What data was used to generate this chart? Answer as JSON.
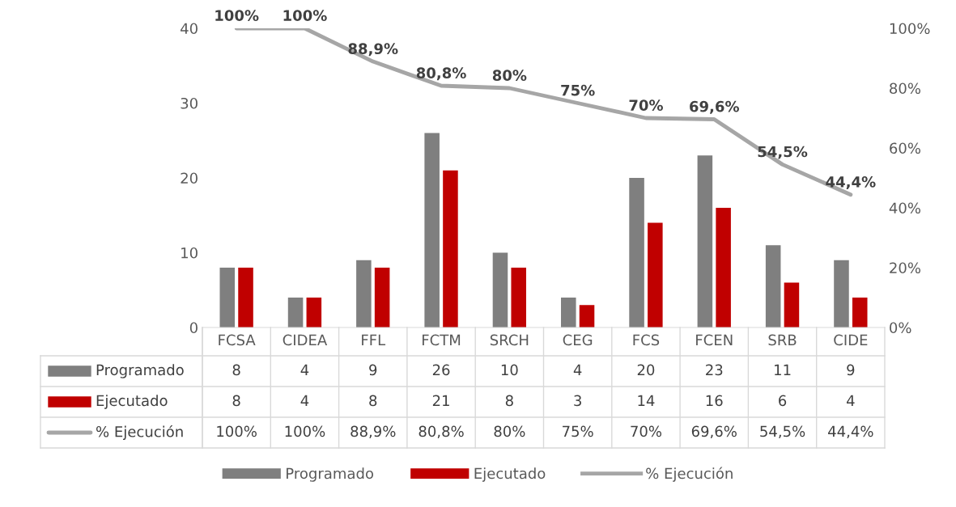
{
  "chart_data": {
    "type": "bar",
    "categories": [
      "FCSA",
      "CIDEA",
      "FFL",
      "FCTM",
      "SRCH",
      "CEG",
      "FCS",
      "FCEN",
      "SRB",
      "CIDE"
    ],
    "series": [
      {
        "name": "Programado",
        "color": "#7f7f7f",
        "values": [
          8,
          4,
          9,
          26,
          10,
          4,
          20,
          23,
          11,
          9
        ],
        "value_labels": [
          "8",
          "4",
          "9",
          "26",
          "10",
          "4",
          "20",
          "23",
          "11",
          "9"
        ]
      },
      {
        "name": "Ejecutado",
        "color": "#c00000",
        "values": [
          8,
          4,
          8,
          21,
          8,
          3,
          14,
          16,
          6,
          4
        ],
        "value_labels": [
          "8",
          "4",
          "8",
          "21",
          "8",
          "3",
          "14",
          "16",
          "6",
          "4"
        ]
      },
      {
        "name": "% Ejecución",
        "type": "line",
        "axis": "y2",
        "color": "#a6a6a6",
        "values": [
          100,
          100,
          88.9,
          80.8,
          80,
          75,
          70,
          69.6,
          54.5,
          44.4
        ],
        "value_labels": [
          "100%",
          "100%",
          "88,9%",
          "80,8%",
          "80%",
          "75%",
          "70%",
          "69,6%",
          "54,5%",
          "44,4%"
        ]
      }
    ],
    "ylim": [
      0,
      40
    ],
    "yticks": [
      0,
      10,
      20,
      30,
      40
    ],
    "y2lim": [
      0,
      100
    ],
    "y2ticks": [
      {
        "value": 0,
        "label": "0%"
      },
      {
        "value": 20,
        "label": "20%"
      },
      {
        "value": 40,
        "label": "40%"
      },
      {
        "value": 60,
        "label": "60%"
      },
      {
        "value": 80,
        "label": "80%"
      },
      {
        "value": 100,
        "label": "100%"
      }
    ],
    "grid": false,
    "legend": "bottom",
    "marker": "none",
    "line_style": "solid"
  }
}
